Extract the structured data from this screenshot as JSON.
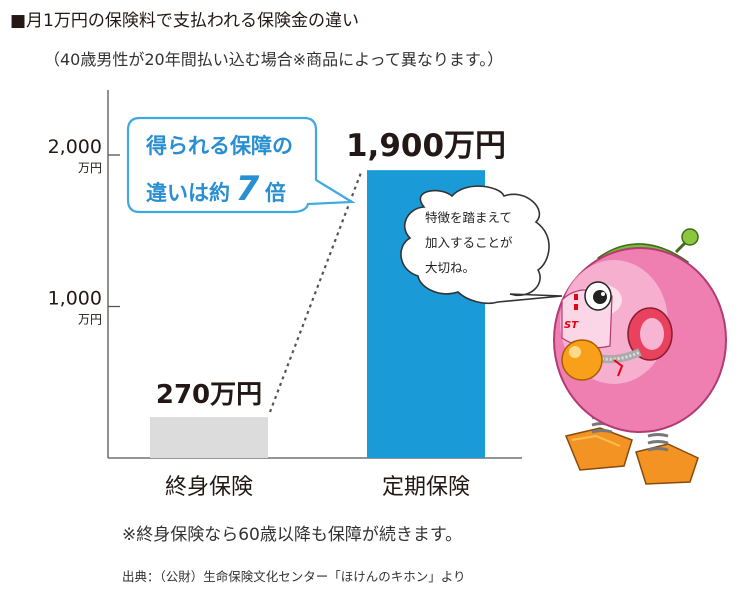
{
  "title": "■月1万円の保険料で支払われる保険金の違い",
  "subtitle": "（40歳男性が20年間払い込む場合※商品によって異なります。）",
  "callout": {
    "line1": "得られる保障の",
    "line2_prefix": "違いは約",
    "line2_number": "7",
    "line2_suffix": "倍"
  },
  "speech_bubble": {
    "lines": [
      "特徴を踏まえて",
      "加入することが",
      "大切ね。"
    ]
  },
  "footnote": "※終身保険なら60歳以降も保障が続きます。",
  "source": "出典：（公財）生命保険文化センター「ほけんのキホン」より",
  "colors": {
    "bar_whole_life": "#dcdcdc",
    "bar_term": "#1a9bd7",
    "callout_border": "#3fa9e0",
    "callout_text": "#2a8fd0",
    "dotted_line": "#555555"
  },
  "chart_data": {
    "type": "bar",
    "categories": [
      "終身保険",
      "定期保険"
    ],
    "values": [
      270,
      1900
    ],
    "value_labels": [
      "270万円",
      "1,900万円"
    ],
    "yticks": [
      {
        "value": 1000,
        "label": "1,000",
        "unit": "万円"
      },
      {
        "value": 2000,
        "label": "2,000",
        "unit": "万円"
      }
    ],
    "ylim": [
      0,
      2000
    ],
    "grid": false,
    "legend": "none"
  },
  "mascot": {
    "icon": "pink-robot-mascot-icon",
    "chest_text": "ST"
  }
}
